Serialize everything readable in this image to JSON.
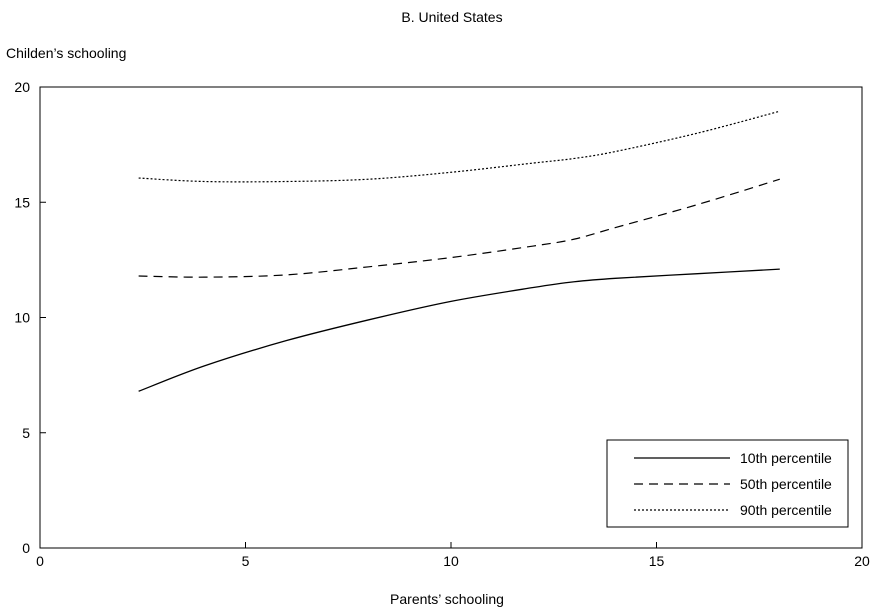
{
  "chart_data": {
    "type": "line",
    "title": "B. United States",
    "xlabel": "Parents’ schooling",
    "ylabel": "Childen’s schooling",
    "xlim": [
      0,
      20
    ],
    "ylim": [
      0,
      20
    ],
    "xticks": [
      "0",
      "5",
      "10",
      "15",
      "20"
    ],
    "yticks": [
      "0",
      "5",
      "10",
      "15",
      "20"
    ],
    "grid": false,
    "legend_position": "bottom-right",
    "x": [
      2.4,
      4,
      6,
      8,
      10,
      12,
      13,
      14,
      16,
      18
    ],
    "series": [
      {
        "name": "10th percentile",
        "style": "solid",
        "values": [
          6.8,
          7.9,
          9.0,
          9.9,
          10.7,
          11.3,
          11.55,
          11.7,
          11.9,
          12.1
        ]
      },
      {
        "name": "50th percentile",
        "style": "dashed",
        "values": [
          11.8,
          11.75,
          11.85,
          12.2,
          12.6,
          13.1,
          13.4,
          13.9,
          14.9,
          16.0
        ]
      },
      {
        "name": "90th percentile",
        "style": "dotted",
        "values": [
          16.05,
          15.9,
          15.9,
          16.0,
          16.3,
          16.7,
          16.9,
          17.2,
          18.0,
          18.95
        ]
      }
    ]
  }
}
